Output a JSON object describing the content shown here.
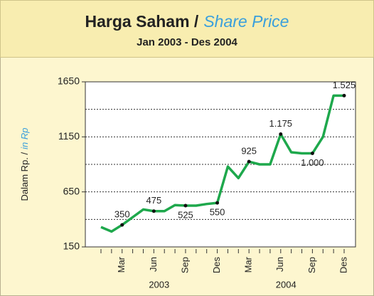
{
  "chart_data": {
    "type": "line",
    "title": "Harga Saham /",
    "title_highlight": "Share Price",
    "subtitle": "Jan 2003 - Des 2004",
    "y_axis_label": "Dalam Rp. /",
    "y_axis_label_highlight": "in Rp",
    "categories": [
      null,
      null,
      "Mar",
      null,
      null,
      "Jun",
      null,
      null,
      "Sep",
      null,
      null,
      "Des",
      null,
      null,
      "Mar",
      null,
      null,
      "Jun",
      null,
      null,
      "Sep",
      null,
      null,
      "Des"
    ],
    "years": [
      "2003",
      "2004"
    ],
    "values": [
      330,
      290,
      350,
      420,
      490,
      475,
      475,
      530,
      525,
      525,
      540,
      550,
      880,
      775,
      925,
      900,
      900,
      1175,
      1010,
      1000,
      1000,
      1150,
      1525,
      1525
    ],
    "value_labels": [
      null,
      null,
      "350",
      null,
      null,
      "475",
      null,
      null,
      "525",
      null,
      null,
      "550",
      null,
      null,
      "925",
      null,
      null,
      "1.175",
      null,
      null,
      "1.000",
      null,
      null,
      "1.525"
    ],
    "color": "#1ea84c",
    "ylim": [
      150,
      1650
    ],
    "yticks": [
      150,
      650,
      1150,
      1650
    ],
    "grid_lines": [
      400,
      650,
      900,
      1150,
      1400
    ]
  }
}
